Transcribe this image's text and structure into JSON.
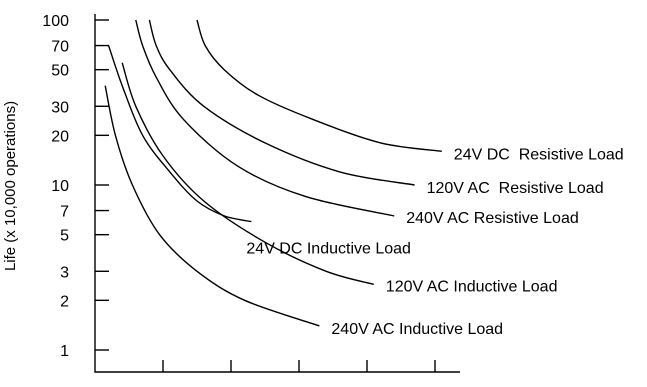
{
  "chart_data": {
    "type": "line",
    "title": "",
    "xlabel": "",
    "ylabel": "Life (x 10,000 operations)",
    "yscale": "log",
    "ylim": [
      0.7,
      100
    ],
    "xlim": [
      0,
      8
    ],
    "yticks": [
      1,
      2,
      3,
      5,
      7,
      10,
      20,
      30,
      50,
      70,
      100
    ],
    "ytick_labels": [
      "1",
      "2",
      "3",
      "5",
      "7",
      "10",
      "20",
      "30",
      "50",
      "70",
      "100"
    ],
    "xticks": [
      1,
      2,
      3,
      4,
      5
    ],
    "xtick_labels": [
      "",
      "",
      "",
      "",
      ""
    ],
    "grid": false,
    "legend": "labels beside curves",
    "series": [
      {
        "name": "24V DC  Resistive Load",
        "x": [
          1.5,
          1.62,
          1.9,
          2.4,
          3.2,
          4.2,
          5.1
        ],
        "y": [
          100,
          70,
          50,
          35,
          25,
          18,
          16
        ]
      },
      {
        "name": "120V AC  Resistive Load",
        "x": [
          0.8,
          0.9,
          1.1,
          1.6,
          2.5,
          3.6,
          4.7
        ],
        "y": [
          100,
          70,
          50,
          30,
          18,
          12,
          10
        ]
      },
      {
        "name": "240V AC Resistive Load",
        "x": [
          0.6,
          0.7,
          0.9,
          1.3,
          2.1,
          3.1,
          4.4
        ],
        "y": [
          100,
          70,
          45,
          25,
          13,
          8.5,
          6.5
        ]
      },
      {
        "name": "24V DC Inductive Load",
        "x": [
          0.2,
          0.4,
          0.7,
          1.1,
          1.5,
          1.9,
          2.3
        ],
        "y": [
          70,
          40,
          20,
          12,
          8,
          6.5,
          6
        ]
      },
      {
        "name": "120V AC Inductive Load",
        "x": [
          0.4,
          0.6,
          1.0,
          1.6,
          2.5,
          3.4,
          4.1
        ],
        "y": [
          55,
          30,
          15,
          8,
          4.5,
          3,
          2.5
        ]
      },
      {
        "name": "240V AC Inductive Load",
        "x": [
          0.15,
          0.3,
          0.55,
          0.95,
          1.5,
          2.2,
          3.3
        ],
        "y": [
          40,
          20,
          10,
          5,
          3,
          2,
          1.4
        ]
      }
    ]
  }
}
